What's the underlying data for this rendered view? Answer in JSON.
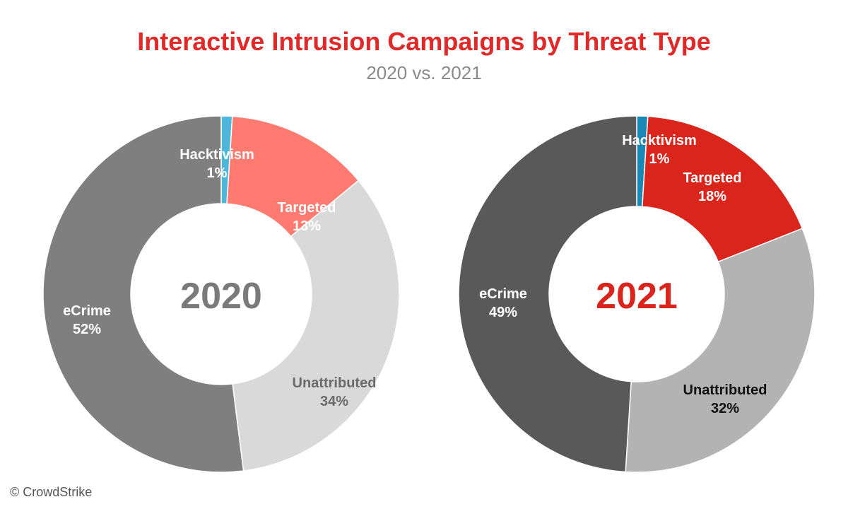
{
  "title": "Interactive Intrusion Campaigns by Threat Type",
  "subtitle": "2020 vs. 2021",
  "watermark": "© CrowdStrike",
  "chart_data": [
    {
      "type": "pie",
      "center_label": "2020",
      "center_color": "#7a7a7a",
      "slices": [
        {
          "label": "Hacktivism",
          "value": 1,
          "display": "1%",
          "color": "#4db6d9",
          "text_color": "#ffffff"
        },
        {
          "label": "Targeted",
          "value": 13,
          "display": "13%",
          "color": "#ff7b72",
          "text_color": "#ffffff"
        },
        {
          "label": "Unattributed",
          "value": 34,
          "display": "34%",
          "color": "#d9d9d9",
          "text_color": "#6b6b6b"
        },
        {
          "label": "eCrime",
          "value": 52,
          "display": "52%",
          "color": "#7f7f7f",
          "text_color": "#ffffff"
        }
      ]
    },
    {
      "type": "pie",
      "center_label": "2021",
      "center_color": "#d9251c",
      "slices": [
        {
          "label": "Hacktivism",
          "value": 1,
          "display": "1%",
          "color": "#1a88b5",
          "text_color": "#ffffff"
        },
        {
          "label": "Targeted",
          "value": 18,
          "display": "18%",
          "color": "#d9251c",
          "text_color": "#ffffff"
        },
        {
          "label": "Unattributed",
          "value": 32,
          "display": "32%",
          "color": "#b3b3b3",
          "text_color": "#111111"
        },
        {
          "label": "eCrime",
          "value": 49,
          "display": "49%",
          "color": "#595959",
          "text_color": "#ffffff"
        }
      ]
    }
  ]
}
